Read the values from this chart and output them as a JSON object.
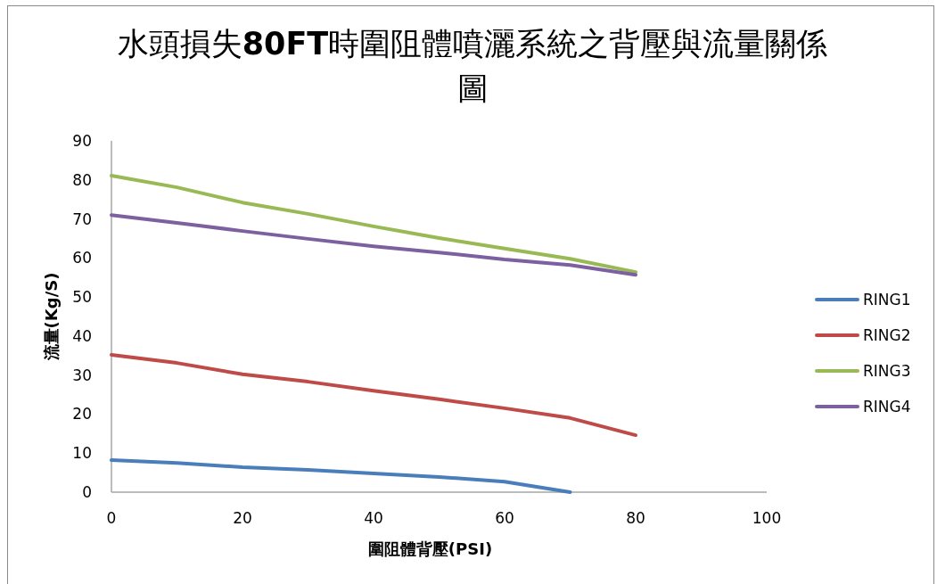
{
  "chart_data": {
    "type": "line",
    "title": "水頭損失**80FT**時圍阻體噴灑系統之背壓與流量關係圖",
    "xlabel": "圍阻體背壓(PSI)",
    "ylabel": "流量(Kg/S)",
    "x": [
      0,
      10,
      20,
      30,
      40,
      50,
      60,
      70,
      80
    ],
    "xlim": [
      0,
      100
    ],
    "xticks": [
      0,
      20,
      40,
      60,
      80,
      100
    ],
    "ylim": [
      0,
      90
    ],
    "yticks": [
      0,
      10,
      20,
      30,
      40,
      50,
      60,
      70,
      80,
      90
    ],
    "legend": "right",
    "series": [
      {
        "name": "RING1",
        "color": "#4a7ebb",
        "x": [
          0,
          10,
          20,
          30,
          40,
          50,
          60,
          70
        ],
        "values": [
          8.2,
          7.5,
          6.4,
          5.7,
          4.8,
          3.9,
          2.7,
          0
        ]
      },
      {
        "name": "RING2",
        "color": "#be4b48",
        "values": [
          35.2,
          33.1,
          30.2,
          28.3,
          26,
          23.8,
          21.5,
          19,
          14.6
        ]
      },
      {
        "name": "RING3",
        "color": "#98b954",
        "values": [
          81.1,
          78.1,
          74.2,
          71.3,
          68.1,
          65.1,
          62.4,
          59.8,
          56.4
        ]
      },
      {
        "name": "RING4",
        "color": "#7d60a0",
        "values": [
          71,
          69,
          66.9,
          64.9,
          63,
          61.4,
          59.6,
          58.2,
          55.7
        ]
      }
    ]
  }
}
